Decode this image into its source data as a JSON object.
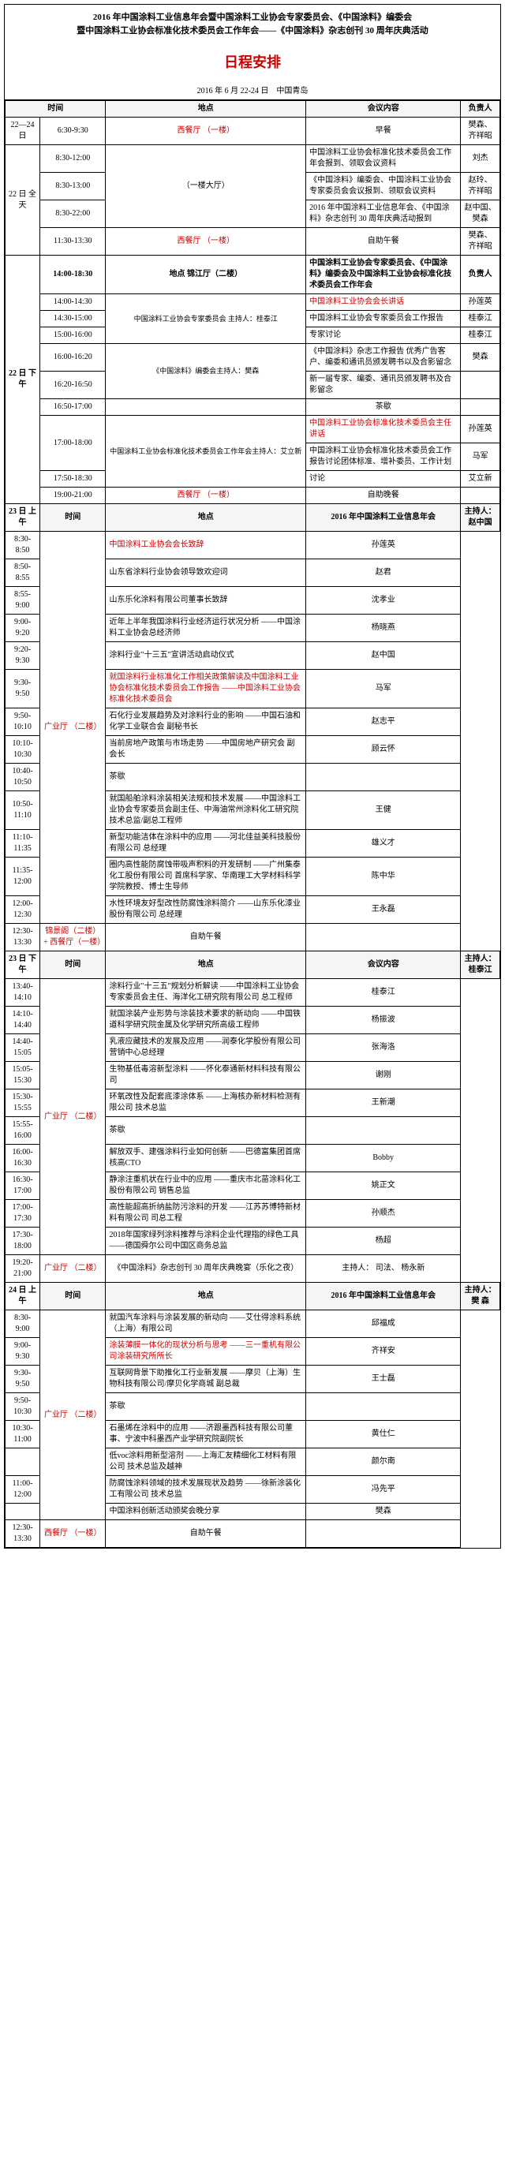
{
  "header_line1": "2016 年中国涂料工业信息年会暨中国涂料工业协会专家委员会、《中国涂料》编委会",
  "header_line2": "暨中国涂料工业协会标准化技术委员会工作年会——《中国涂料》杂志创刊 30 周年庆典活动",
  "main_title": "日程安排",
  "date_loc": "2016 年 6 月 22-24 日　中国青岛",
  "hdr": {
    "time": "时间",
    "place": "地点",
    "content": "会议内容",
    "person": "负责人"
  },
  "r1": {
    "date": "22—24 日",
    "time": "6:30-9:30",
    "place": "西餐厅\n（一楼）",
    "content": "早餐",
    "person": "樊森、\n齐祥昭"
  },
  "d22full": {
    "label": "22 日\n全天",
    "t1": "8:30-12:00",
    "c1": "中国涂料工业协会标准化技术委员会工作年会报到、领取会议资料",
    "p1": "刘杰",
    "t2": "8:30-13:00",
    "place2": "（一楼大厅）",
    "c2": "《中国涂料》编委会、中国涂料工业协会专家委员会会议报到、领取会议资料",
    "p2": "赵玲、\n齐祥昭",
    "t3": "8:30-22:00",
    "c3": "2016 年中国涂料工业信息年会、《中国涂料》杂志创刊 30 周年庆典活动报到",
    "p3": "赵中国、\n樊森",
    "t4": "11:30-13:30",
    "place4": "西餐厅\n（一楼）",
    "c4": "自助午餐",
    "p4": "樊森、\n齐祥昭"
  },
  "d22pm": {
    "label": "22 日\n下午",
    "t0": "14:00-18:30",
    "place0": "地点\n锦江厅（二楼）",
    "c0": "中国涂料工业协会专家委员会、《中国涂料》编委会及中国涂料工业协会标准化技术委员会工作年会",
    "p0": "负责人",
    "t1": "14:00-14:30",
    "place1": "中国涂料工业协会专家委员会\n主持人：桂泰江",
    "c1": "中国涂料工业协会会长讲话",
    "p1": "孙莲英",
    "t2": "14:30-15:00",
    "c2": "中国涂料工业协会专家委员会工作报告",
    "p2": "桂泰江",
    "t3": "15:00-16:00",
    "c3": "专家讨论",
    "p3": "桂泰江",
    "t4": "16:00-16:20",
    "place4": "《中国涂料》编委会主持人：樊森",
    "c4": "《中国涂料》杂志工作报告\n优秀广告客户、编委和通讯员颁发聘书以及合影留念",
    "p4": "樊森",
    "t5": "16:20-16:50",
    "c5": "新一届专家、编委、通讯员颁发聘书及合影留念",
    "p5": "",
    "t6": "16:50-17:00",
    "c6": "茶歇",
    "p6": "",
    "t7": "17:00-18:00",
    "place7": "中国涂料工业协会标准化技术委员会工作年会主持人：艾立新",
    "c7": "中国涂料工业协会标准化技术委员会主任讲话",
    "p7": "孙莲英",
    "t8": "",
    "c8": "中国涂料工业协会标准化技术委员会工作报告讨论团体标准、增补委员、工作计划",
    "p8": "马军",
    "t9": "17:50-18:30",
    "c9": "讨论",
    "p9": "艾立新",
    "t10": "19:00-21:00",
    "place10": "西餐厅\n（一楼）",
    "c10": "自助晚餐",
    "p10": ""
  },
  "d23am": {
    "label": "23 日\n上午",
    "section": "2016 年中国涂料工业信息年会",
    "host": "主持人：\n赵中国",
    "hdr_time": "时间",
    "hdr_place": "地点",
    "place": "广业厅\n（二楼）",
    "rows": [
      {
        "t": "8:30-8:50",
        "c": "中国涂料工业协会会长致辞",
        "cr": 1,
        "p": "孙莲英"
      },
      {
        "t": "8:50-8:55",
        "c": "山东省涂料行业协会领导致欢迎词",
        "p": "赵君"
      },
      {
        "t": "8:55-9:00",
        "c": "山东乐化涂料有限公司董事长致辞",
        "p": "沈孝业"
      },
      {
        "t": "9:00-9:20",
        "c": "近年上半年我国涂料行业经济运行状况分析\n——中国涂料工业协会总经济师",
        "p": "杨晓燕"
      },
      {
        "t": "9:20-9:30",
        "c": "涂料行业\"十三五\"宣讲活动启动仪式",
        "p": "赵中国"
      },
      {
        "t": "9:30-9:50",
        "c": "就国涂料行业标准化工作相关政策解读及中国涂料工业协会标准化技术委员会工作报告\n——中国涂料工业协会标准化技术委员会",
        "cr": 1,
        "p": "马军"
      },
      {
        "t": "9:50-10:10",
        "c": "石化行业发展趋势及对涂料行业的影响\n——中国石油和化学工业联合会 副秘书长",
        "p": "赵志平"
      },
      {
        "t": "10:10-10:30",
        "c": "当前房地产政策与市场走势\n——中国房地产研究会 副会长",
        "p": "顾云怀"
      },
      {
        "t": "10:40-10:50",
        "c": "茶歇",
        "p": ""
      },
      {
        "t": "10:50-11:10",
        "c": "就国船舶涂料涂装相关法规和技术发展\n——中国涂料工业协会专家委员会副主任、中海油常州涂料化工研究院 技术总监/副总工程师",
        "p": "王健"
      },
      {
        "t": "11:10-11:35",
        "c": "新型功能洁体在涂料中的应用\n——河北佳益美科技股份有限公司 总经理",
        "p": "雄义才"
      },
      {
        "t": "11:35-12:00",
        "c": "圈内高性能防腐蚀带吸声积料的开发研制\n——广州集泰化工股份有限公司 首席科学家、华南理工大学材料科学学院教授、博士生导师",
        "p": "陈中华"
      },
      {
        "t": "12:00-12:30",
        "c": "水性环境友好型改性防腐蚀涂料简介\n——山东乐化漆业股份有限公司 总经理",
        "p": "王永磊"
      }
    ],
    "lunch": {
      "t": "12:30-13:30",
      "place": "锦景阁（二楼）+\n西餐厅（一楼）",
      "c": "自助午餐"
    }
  },
  "d23pm": {
    "label": "23 日\n下午",
    "hdr_time": "时间",
    "hdr_place": "地点",
    "hdr_content": "会议内容",
    "host": "主持人：\n桂泰江",
    "place": "广业厅\n（二楼）",
    "rows": [
      {
        "t": "13:40-14:10",
        "c": "涂料行业\"十三五\"规划分析解读\n——中国涂料工业协会专家委员会主任、海洋化工研究院有限公司 总工程师",
        "p": "桂泰江"
      },
      {
        "t": "14:10-14:40",
        "c": "就国涂装产业形势与涂装技术要求的新动向\n——中国铁道科学研究院金属及化学研究所高级工程师",
        "p": "杨振波"
      },
      {
        "t": "14:40-15:05",
        "c": "乳液应藏技术的发展及应用\n——润泰化学股份有限公司营销中心总经理",
        "p": "张海洛"
      },
      {
        "t": "15:05-15:30",
        "c": "生物基低毒溶新型涂料\n——怀化泰通新材料科技有限公司",
        "p": "谢刚"
      },
      {
        "t": "15:30-15:55",
        "c": "环氧改性及配套底漆涂体系\n——上海核办新材料检测有限公司 技术总监",
        "p": "王新潮"
      },
      {
        "t": "15:55-16:00",
        "c": "茶歇",
        "p": ""
      },
      {
        "t": "16:00-16:30",
        "c": "解放双手、建强涂料行业如何创新\n——巴德富集团首席 核高CTO",
        "p": "Bobby"
      },
      {
        "t": "16:30-17:00",
        "c": "静涂注重机状在行业中的应用\n——重庆市北苗涂料化工股份有限公司 销售总监",
        "p": "姚正文"
      },
      {
        "t": "17:00-17:30",
        "c": "高性能超高折纳盐防污涂料的开发\n——江苏苏博特新材料有限公司 司总工程",
        "p": "孙顺杰"
      },
      {
        "t": "17:30-18:00",
        "c": "2018年国家绿列涂料推荐与涂料企业代理指的绿色工具\n——德国舜尔公司中国区商务总监",
        "p": "杨超"
      }
    ],
    "evening": {
      "t": "19:20-21:00",
      "place": "广业厅\n（二楼）",
      "c": "《中国涂料》杂志创刊 30 周年庆典晚宴（乐化之夜）",
      "p": "主持人：\n司法、\n杨永新"
    }
  },
  "d24am": {
    "label": "24 日\n上午",
    "hdr_time": "时间",
    "hdr_place": "地点",
    "section": "2016 年中国涂料工业信息年会",
    "host": "主持人：\n樊 森",
    "place": "广业厅\n（二楼）",
    "rows": [
      {
        "t": "8:30-9:00",
        "c": "就国汽车涂料与涂装发展的新动向\n——艾仕得涂料系统（上海）有限公司",
        "p": "邱福成"
      },
      {
        "t": "9:00-9:30",
        "c": "涂装薄膜一体化的现状分析与思考\n——三一重机有限公司涂装研究所所长",
        "cr": 1,
        "p": "齐祥安"
      },
      {
        "t": "9:30-9:50",
        "c": "互联网背景下助推化工行业新发展\n——摩贝（上海）生物科技有限公司/摩贝化学商城\n副总裁",
        "p": "王士磊"
      },
      {
        "t": "9:50-10:30",
        "c": "茶歇",
        "p": ""
      },
      {
        "t": "10:30-11:00",
        "c": "石墨烯在涂料中的应用\n——济跟墨西科技有限公司董事、宁波中科墨西产业学研究院副院长",
        "p": "黄仕仁"
      },
      {
        "t": "",
        "c": "低voc涂料用新型溶剂\n——上海汇友精细化工材料有限公司 技术总监及越神",
        "p": "颜尔南"
      },
      {
        "t": "11:00-12:00",
        "c": "防腐蚀涂料领域的技术发展现状及趋势\n——徐新涂装化工有限公司 技术总监",
        "p": "冯先平"
      },
      {
        "t": "",
        "c": "中国涂料创新活动颁奖会晚分享",
        "p": "樊森"
      }
    ],
    "lunch": {
      "t": "12:30-13:30",
      "place": "西餐厅\n（一楼）",
      "c": "自助午餐"
    }
  }
}
